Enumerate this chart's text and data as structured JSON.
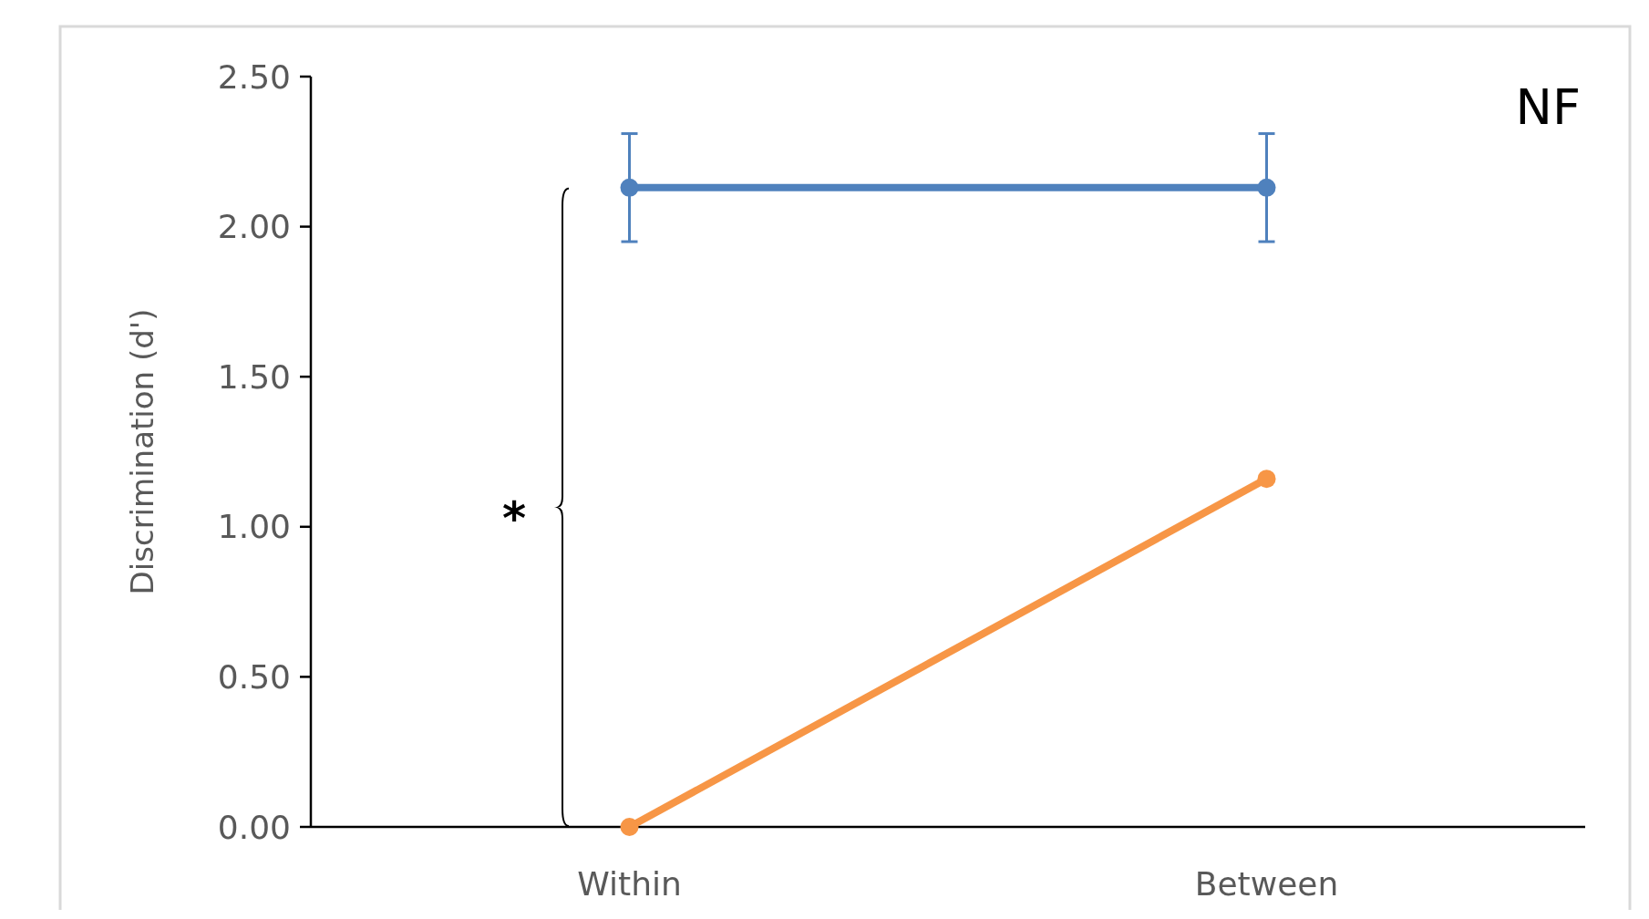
{
  "chart_data": {
    "type": "line",
    "ylabel": "Discrimination (d')",
    "categories": [
      "Within",
      "Between"
    ],
    "series": [
      {
        "color": "#4f81bd",
        "values": [
          2.13,
          2.13
        ],
        "errors": [
          0.18,
          0.18
        ]
      },
      {
        "color": "#f79646",
        "values": [
          0,
          1.16
        ]
      }
    ],
    "ylim": [
      0,
      2.5
    ],
    "yticks": [
      {
        "value": 0,
        "label": "0.00"
      },
      {
        "value": 0.5,
        "label": "0.50"
      },
      {
        "value": 1,
        "label": "1.00"
      },
      {
        "value": 1.5,
        "label": "1.50"
      },
      {
        "value": 2,
        "label": "2.00"
      },
      {
        "value": 2.5,
        "label": "2.50"
      }
    ],
    "marker": "circle",
    "grid": false,
    "annotations": [
      "NF",
      "*"
    ]
  }
}
